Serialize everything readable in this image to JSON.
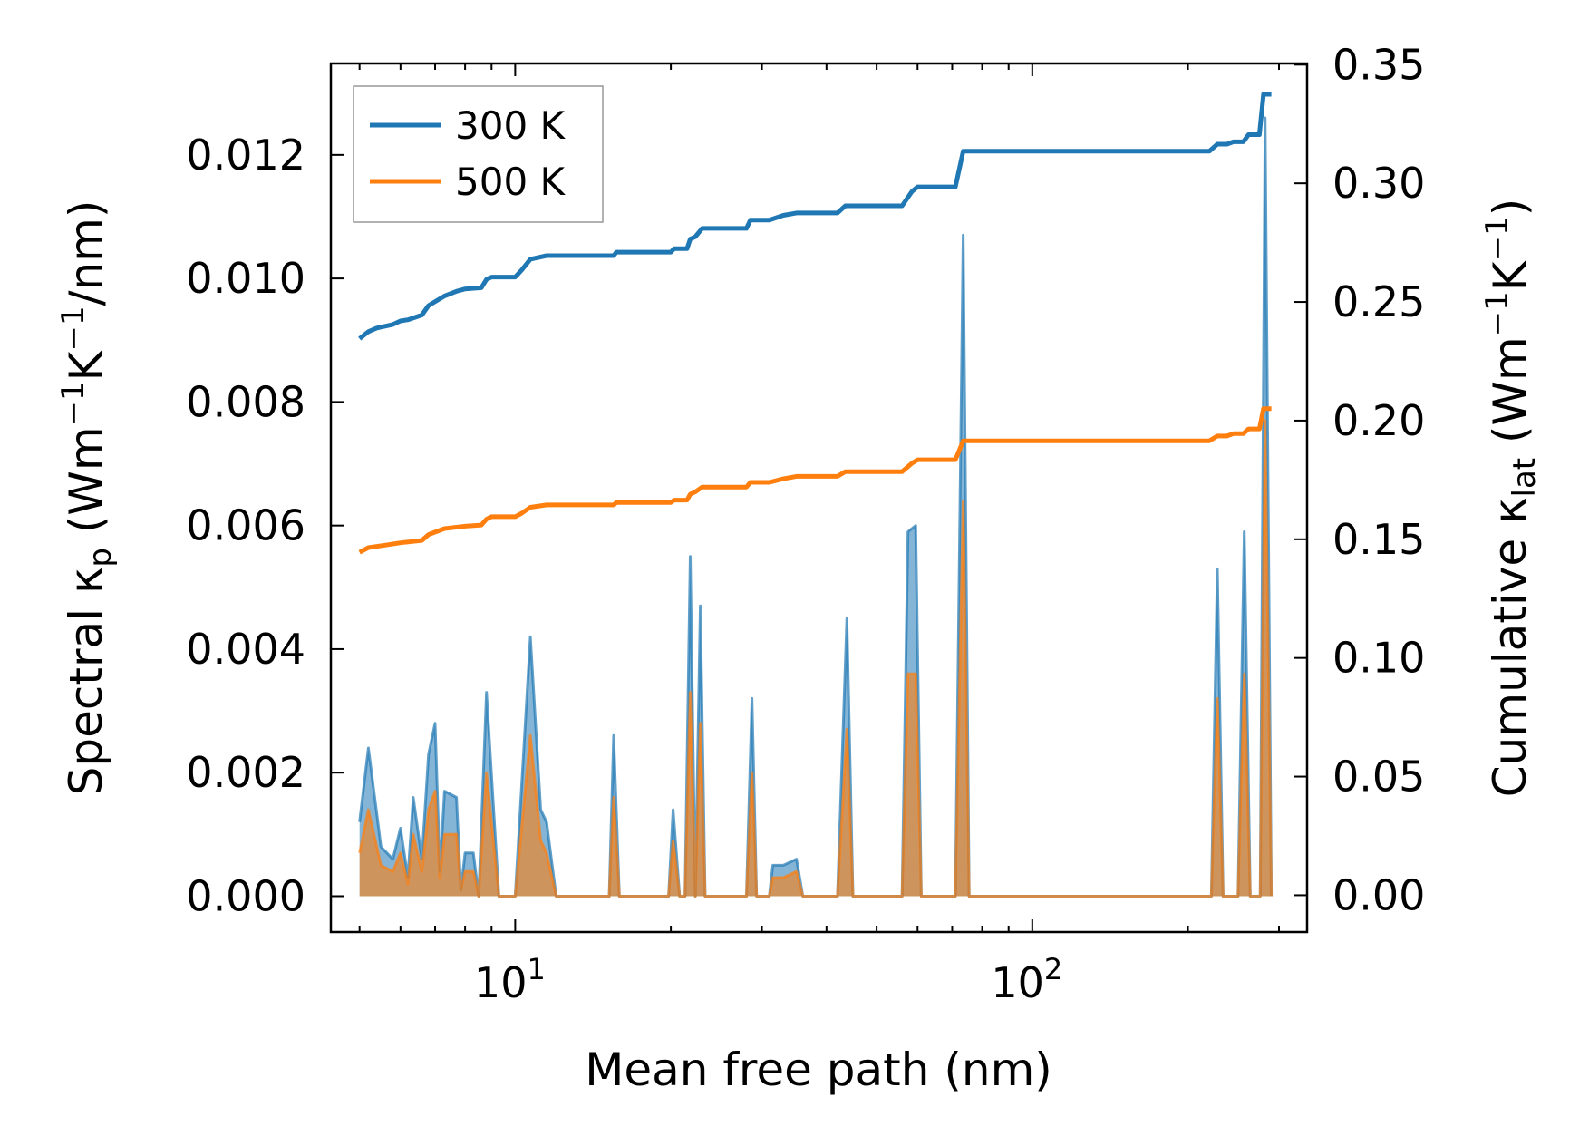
{
  "chart_data": {
    "type": "line",
    "xscale": "log",
    "xlim": [
      4.4,
      340
    ],
    "x_ticks": [
      {
        "value": 10,
        "base": "10",
        "exp": "1"
      },
      {
        "value": 100,
        "base": "10",
        "exp": "2"
      }
    ],
    "xlabel": "Mean free path (nm)",
    "left_axis": {
      "label_main": "Spectral κ",
      "label_sub": "p",
      "label_units_a": " (Wm",
      "label_sup1": "−1",
      "label_units_b": "K",
      "label_sup2": "−1",
      "label_units_c": "/nm)",
      "ylim": [
        -0.00058,
        0.01348
      ],
      "ticks": [
        0.0,
        0.002,
        0.004,
        0.006,
        0.008,
        0.01,
        0.012
      ],
      "tick_labels": [
        "0.000",
        "0.002",
        "0.004",
        "0.006",
        "0.008",
        "0.010",
        "0.012"
      ]
    },
    "right_axis": {
      "label_main": "Cumulative κ",
      "label_sub": "lat",
      "label_units_a": " (Wm",
      "label_sup1": "−1",
      "label_units_b": "K",
      "label_sup2": "−1",
      "label_units_c": ")",
      "ylim": [
        -0.0155,
        0.3505
      ],
      "ticks": [
        0.0,
        0.05,
        0.1,
        0.15,
        0.2,
        0.25,
        0.3,
        0.35
      ],
      "tick_labels": [
        "0.00",
        "0.05",
        "0.10",
        "0.15",
        "0.20",
        "0.25",
        "0.30",
        "0.35"
      ]
    },
    "legend": {
      "position": "top-left"
    },
    "colors": {
      "series_300": "#1f77b4",
      "series_500": "#ff7f0e",
      "fill_blend": "#b58a6a"
    },
    "series": [
      {
        "name": "300 K",
        "axis": "right",
        "cumulative": [
          [
            5.0,
            0.2345
          ],
          [
            5.2,
            0.2375
          ],
          [
            5.4,
            0.239
          ],
          [
            5.8,
            0.2405
          ],
          [
            6.0,
            0.242
          ],
          [
            6.2,
            0.2425
          ],
          [
            6.6,
            0.2445
          ],
          [
            6.8,
            0.2485
          ],
          [
            7.3,
            0.2525
          ],
          [
            7.7,
            0.2545
          ],
          [
            8.0,
            0.2555
          ],
          [
            8.6,
            0.256
          ],
          [
            8.8,
            0.2595
          ],
          [
            9.0,
            0.2605
          ],
          [
            10.0,
            0.2605
          ],
          [
            10.3,
            0.2635
          ],
          [
            10.7,
            0.268
          ],
          [
            11.5,
            0.2695
          ],
          [
            12.0,
            0.2695
          ],
          [
            15.5,
            0.2695
          ],
          [
            15.7,
            0.271
          ],
          [
            20.0,
            0.271
          ],
          [
            20.3,
            0.2725
          ],
          [
            21.5,
            0.2725
          ],
          [
            21.8,
            0.2765
          ],
          [
            22.3,
            0.2775
          ],
          [
            23.0,
            0.281
          ],
          [
            28.0,
            0.281
          ],
          [
            28.5,
            0.2845
          ],
          [
            31.0,
            0.2845
          ],
          [
            33.0,
            0.2865
          ],
          [
            35.0,
            0.2875
          ],
          [
            42.0,
            0.2875
          ],
          [
            43.5,
            0.2905
          ],
          [
            56.0,
            0.2905
          ],
          [
            58.5,
            0.2965
          ],
          [
            60.0,
            0.2985
          ],
          [
            71.0,
            0.2985
          ],
          [
            73.5,
            0.3135
          ],
          [
            220.0,
            0.3135
          ],
          [
            228.0,
            0.3165
          ],
          [
            238.0,
            0.3165
          ],
          [
            245.0,
            0.3175
          ],
          [
            256.0,
            0.3175
          ],
          [
            262.0,
            0.3205
          ],
          [
            275.0,
            0.3205
          ],
          [
            280.0,
            0.3375
          ],
          [
            290.0,
            0.3375
          ]
        ],
        "spectral": [
          [
            5.0,
            0.0012
          ],
          [
            5.2,
            0.0024
          ],
          [
            5.5,
            0.0008
          ],
          [
            5.8,
            0.0006
          ],
          [
            6.0,
            0.0011
          ],
          [
            6.2,
            0.0003
          ],
          [
            6.35,
            0.0016
          ],
          [
            6.6,
            0.0006
          ],
          [
            6.8,
            0.0023
          ],
          [
            7.0,
            0.0028
          ],
          [
            7.15,
            0.0004
          ],
          [
            7.3,
            0.0017
          ],
          [
            7.7,
            0.0016
          ],
          [
            7.85,
            0.0001
          ],
          [
            8.0,
            0.0007
          ],
          [
            8.3,
            0.0007
          ],
          [
            8.5,
            0.0
          ],
          [
            8.8,
            0.0033
          ],
          [
            9.3,
            0.0
          ],
          [
            10.0,
            0.0
          ],
          [
            10.7,
            0.0042
          ],
          [
            11.2,
            0.0014
          ],
          [
            11.5,
            0.0012
          ],
          [
            12.0,
            0.0
          ],
          [
            15.2,
            0.0
          ],
          [
            15.5,
            0.0026
          ],
          [
            15.9,
            0.0
          ],
          [
            19.8,
            0.0
          ],
          [
            20.2,
            0.0014
          ],
          [
            20.8,
            0.0
          ],
          [
            21.3,
            0.0
          ],
          [
            21.8,
            0.0055
          ],
          [
            22.3,
            0.0
          ],
          [
            22.8,
            0.0047
          ],
          [
            23.3,
            0.0
          ],
          [
            28.0,
            0.0
          ],
          [
            28.7,
            0.0032
          ],
          [
            29.3,
            0.0
          ],
          [
            31.0,
            0.0
          ],
          [
            31.5,
            0.0005
          ],
          [
            33.0,
            0.0005
          ],
          [
            35.0,
            0.0006
          ],
          [
            36.0,
            0.0
          ],
          [
            42.0,
            0.0
          ],
          [
            43.8,
            0.0045
          ],
          [
            45.0,
            0.0
          ],
          [
            56.0,
            0.0
          ],
          [
            57.5,
            0.0059
          ],
          [
            59.5,
            0.006
          ],
          [
            61.0,
            0.0
          ],
          [
            71.0,
            0.0
          ],
          [
            73.5,
            0.0107
          ],
          [
            75.5,
            0.0
          ],
          [
            222.0,
            0.0
          ],
          [
            228.0,
            0.0053
          ],
          [
            234.0,
            0.0
          ],
          [
            250.0,
            0.0
          ],
          [
            257.0,
            0.0059
          ],
          [
            264.0,
            0.0
          ],
          [
            276.0,
            0.0
          ],
          [
            282.0,
            0.0126
          ],
          [
            290.0,
            0.0
          ]
        ]
      },
      {
        "name": "500 K",
        "axis": "right",
        "cumulative": [
          [
            5.0,
            0.1445
          ],
          [
            5.2,
            0.1465
          ],
          [
            5.6,
            0.1475
          ],
          [
            6.0,
            0.1485
          ],
          [
            6.6,
            0.1495
          ],
          [
            6.8,
            0.152
          ],
          [
            7.3,
            0.1545
          ],
          [
            8.0,
            0.1555
          ],
          [
            8.6,
            0.156
          ],
          [
            8.8,
            0.1585
          ],
          [
            9.0,
            0.1595
          ],
          [
            10.0,
            0.1595
          ],
          [
            10.3,
            0.161
          ],
          [
            10.7,
            0.1635
          ],
          [
            11.5,
            0.1645
          ],
          [
            15.5,
            0.1645
          ],
          [
            15.7,
            0.1655
          ],
          [
            20.0,
            0.1655
          ],
          [
            20.3,
            0.1665
          ],
          [
            21.5,
            0.1665
          ],
          [
            21.8,
            0.169
          ],
          [
            22.3,
            0.17
          ],
          [
            23.0,
            0.172
          ],
          [
            28.0,
            0.172
          ],
          [
            28.5,
            0.174
          ],
          [
            31.0,
            0.174
          ],
          [
            33.0,
            0.1755
          ],
          [
            35.0,
            0.1765
          ],
          [
            42.0,
            0.1765
          ],
          [
            43.5,
            0.1785
          ],
          [
            56.0,
            0.1785
          ],
          [
            58.5,
            0.182
          ],
          [
            60.0,
            0.1835
          ],
          [
            71.0,
            0.1835
          ],
          [
            73.5,
            0.1915
          ],
          [
            220.0,
            0.1915
          ],
          [
            228.0,
            0.1935
          ],
          [
            238.0,
            0.1935
          ],
          [
            245.0,
            0.1945
          ],
          [
            256.0,
            0.1945
          ],
          [
            262.0,
            0.1965
          ],
          [
            275.0,
            0.1965
          ],
          [
            280.0,
            0.205
          ],
          [
            290.0,
            0.205
          ]
        ],
        "spectral": [
          [
            5.0,
            0.0007
          ],
          [
            5.2,
            0.0014
          ],
          [
            5.5,
            0.0005
          ],
          [
            5.8,
            0.0004
          ],
          [
            6.0,
            0.0007
          ],
          [
            6.2,
            0.0002
          ],
          [
            6.35,
            0.001
          ],
          [
            6.6,
            0.0004
          ],
          [
            6.8,
            0.0014
          ],
          [
            7.0,
            0.0017
          ],
          [
            7.15,
            0.0003
          ],
          [
            7.3,
            0.001
          ],
          [
            7.7,
            0.001
          ],
          [
            7.85,
            0.0001
          ],
          [
            8.0,
            0.0004
          ],
          [
            8.3,
            0.0004
          ],
          [
            8.5,
            0.0
          ],
          [
            8.8,
            0.002
          ],
          [
            9.3,
            0.0
          ],
          [
            10.0,
            0.0
          ],
          [
            10.7,
            0.0026
          ],
          [
            11.2,
            0.0009
          ],
          [
            11.5,
            0.0007
          ],
          [
            12.0,
            0.0
          ],
          [
            15.2,
            0.0
          ],
          [
            15.5,
            0.0016
          ],
          [
            15.9,
            0.0
          ],
          [
            19.8,
            0.0
          ],
          [
            20.2,
            0.0009
          ],
          [
            20.8,
            0.0
          ],
          [
            21.3,
            0.0
          ],
          [
            21.8,
            0.0033
          ],
          [
            22.3,
            0.0
          ],
          [
            22.8,
            0.0028
          ],
          [
            23.3,
            0.0
          ],
          [
            28.0,
            0.0
          ],
          [
            28.7,
            0.002
          ],
          [
            29.3,
            0.0
          ],
          [
            31.0,
            0.0
          ],
          [
            31.5,
            0.0003
          ],
          [
            33.0,
            0.0003
          ],
          [
            35.0,
            0.0004
          ],
          [
            36.0,
            0.0
          ],
          [
            42.0,
            0.0
          ],
          [
            43.8,
            0.0027
          ],
          [
            45.0,
            0.0
          ],
          [
            56.0,
            0.0
          ],
          [
            57.5,
            0.0036
          ],
          [
            59.5,
            0.0036
          ],
          [
            61.0,
            0.0
          ],
          [
            71.0,
            0.0
          ],
          [
            73.5,
            0.0064
          ],
          [
            75.5,
            0.0
          ],
          [
            222.0,
            0.0
          ],
          [
            228.0,
            0.0032
          ],
          [
            234.0,
            0.0
          ],
          [
            250.0,
            0.0
          ],
          [
            257.0,
            0.0036
          ],
          [
            264.0,
            0.0
          ],
          [
            276.0,
            0.0
          ],
          [
            282.0,
            0.0077
          ],
          [
            290.0,
            0.0
          ]
        ]
      }
    ]
  }
}
